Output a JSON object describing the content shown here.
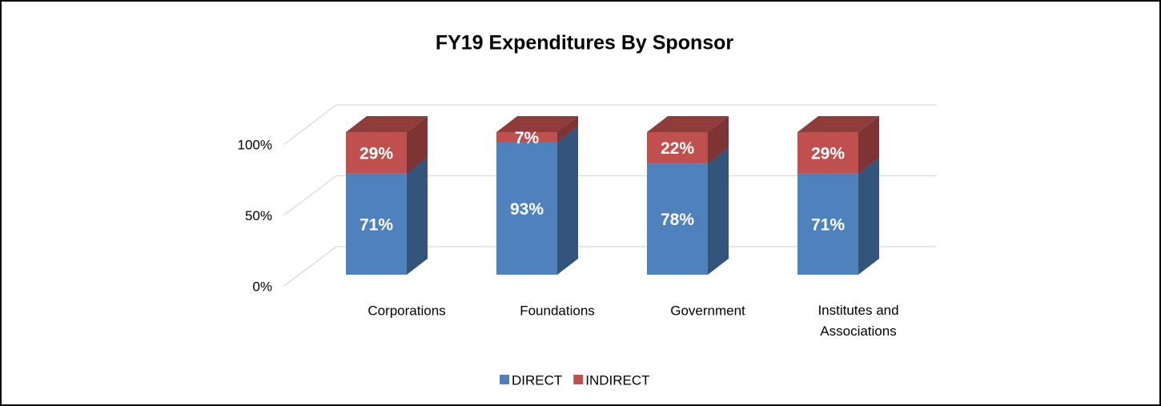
{
  "chart_data": {
    "type": "bar3d_stacked",
    "title": "FY19 Expenditures By Sponsor",
    "categories": [
      "Corporations",
      "Foundations",
      "Government",
      "Institutes and Associations"
    ],
    "series": [
      {
        "name": "DIRECT",
        "color": "#4f81bd",
        "values": [
          71,
          93,
          78,
          71
        ],
        "value_labels": [
          "71%",
          "93%",
          "78%",
          "71%"
        ]
      },
      {
        "name": "INDIRECT",
        "color": "#c0504d",
        "values": [
          29,
          7,
          22,
          29
        ],
        "value_labels": [
          "29%",
          "7%",
          "22%",
          "29%"
        ]
      }
    ],
    "ylim": [
      0,
      100
    ],
    "yticks": [
      {
        "value": 0,
        "label": "0%"
      },
      {
        "value": 50,
        "label": "50%"
      },
      {
        "value": 100,
        "label": "100%"
      }
    ],
    "grid": true,
    "legend": "bottom"
  }
}
